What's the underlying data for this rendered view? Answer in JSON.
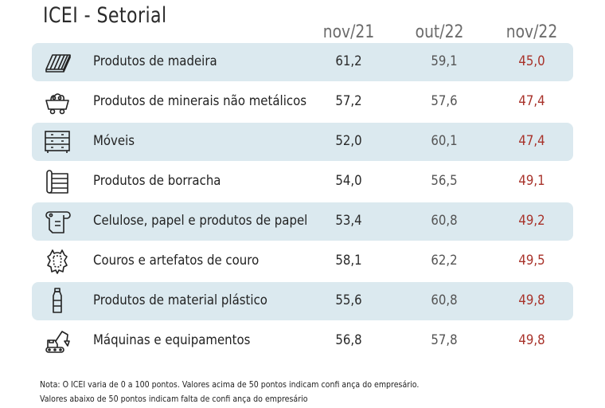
{
  "chart_data": {
    "type": "table",
    "title": "ICEI - Setorial",
    "columns": [
      "nov/21",
      "out/22",
      "nov/22"
    ],
    "rows": [
      {
        "label": "Produtos de madeira",
        "icon": "wood-planks-icon",
        "values": [
          "61,2",
          "59,1",
          "45,0"
        ]
      },
      {
        "label": "Produtos de minerais não metálicos",
        "icon": "mine-cart-icon",
        "values": [
          "57,2",
          "57,6",
          "47,4"
        ]
      },
      {
        "label": "Móveis",
        "icon": "dresser-icon",
        "values": [
          "52,0",
          "60,1",
          "47,4"
        ]
      },
      {
        "label": "Produtos de borracha",
        "icon": "rubber-mat-icon",
        "values": [
          "54,0",
          "56,5",
          "49,1"
        ]
      },
      {
        "label": "Celulose, papel e produtos de papel",
        "icon": "paper-roll-icon",
        "values": [
          "53,4",
          "60,8",
          "49,2"
        ]
      },
      {
        "label": "Couros e artefatos de couro",
        "icon": "leather-hide-icon",
        "values": [
          "58,1",
          "62,2",
          "49,5"
        ]
      },
      {
        "label": "Produtos de material plástico",
        "icon": "plastic-bottle-icon",
        "values": [
          "55,6",
          "60,8",
          "49,8"
        ]
      },
      {
        "label": "Máquinas e equipamentos",
        "icon": "excavator-icon",
        "values": [
          "56,8",
          "57,8",
          "49,8"
        ]
      }
    ],
    "colors": {
      "row_shade": "#dbe9ef",
      "latest_value": "#a8322a"
    }
  },
  "notes": {
    "line1": "Nota: O ICEI varia de 0 a 100 pontos. Valores acima de 50 pontos indicam confi ança do empresário.",
    "line2": "Valores abaixo de 50 pontos indicam falta de confi ança do empresário"
  }
}
